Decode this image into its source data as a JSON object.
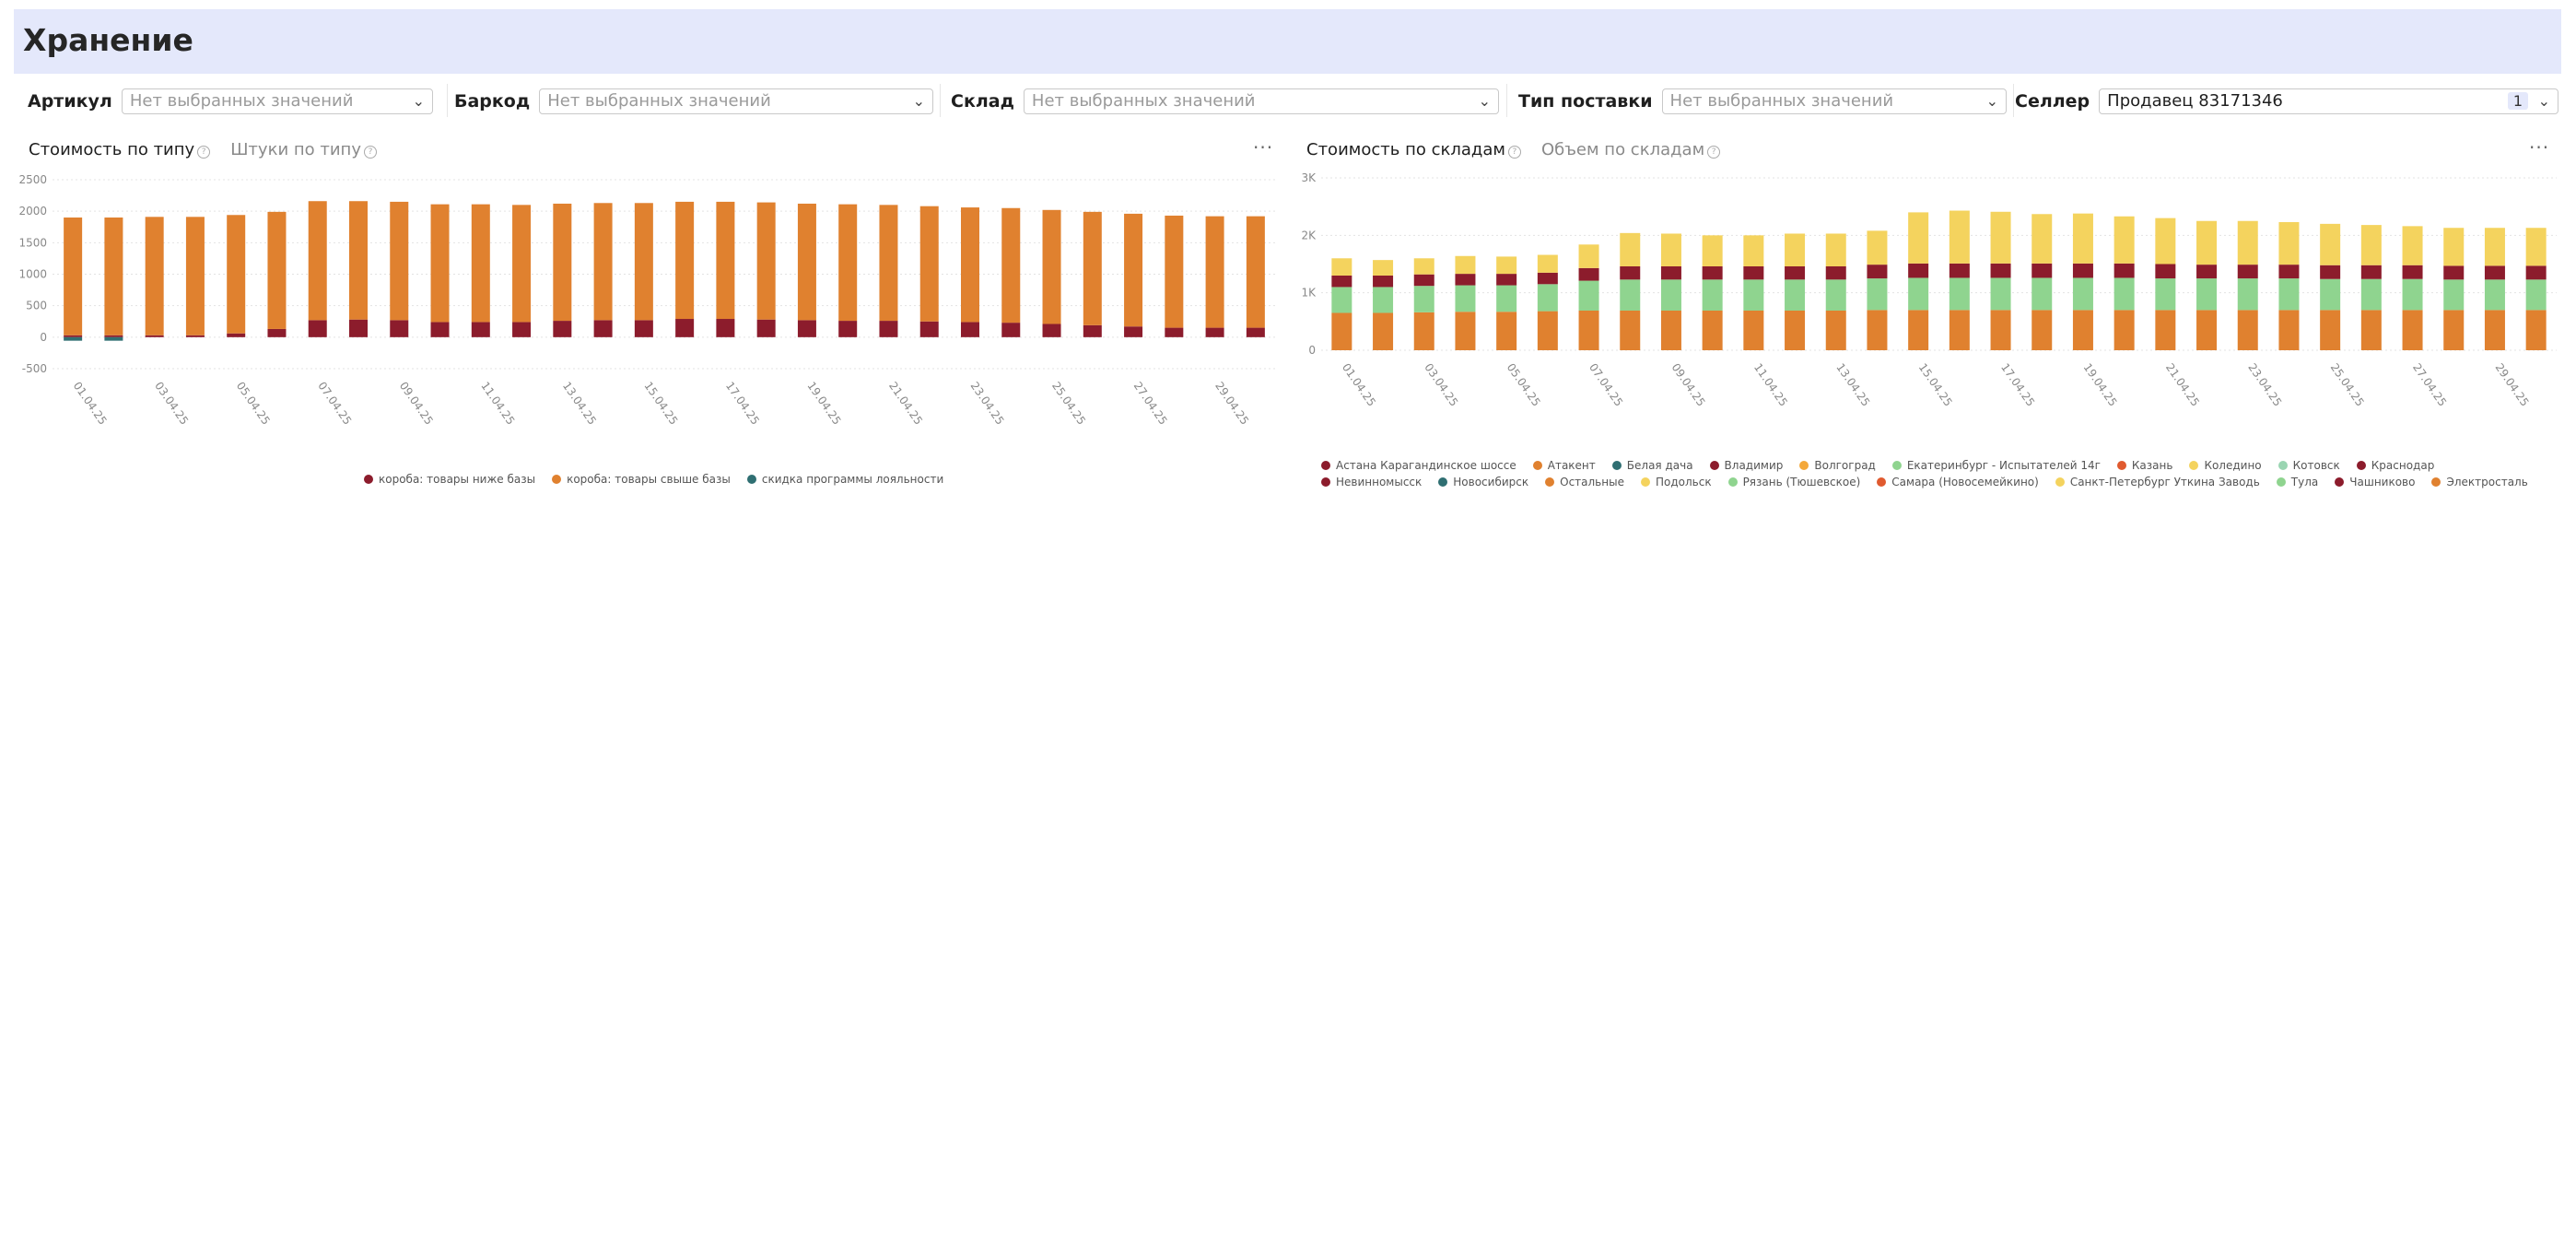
{
  "page": {
    "title": "Хранение"
  },
  "filters": [
    {
      "label": "Артикул",
      "value": "Нет выбранных значений",
      "filled": false
    },
    {
      "label": "Баркод",
      "value": "Нет выбранных значений",
      "filled": false
    },
    {
      "label": "Склад",
      "value": "Нет выбранных значений",
      "filled": false
    },
    {
      "label": "Тип поставки",
      "value": "Нет выбранных значений",
      "filled": false
    },
    {
      "label": "Селлер",
      "value": "Продавец 83171346",
      "filled": true,
      "count": "1"
    }
  ],
  "chart1": {
    "tab_active": "Стоимость по типу",
    "tab_inactive": "Штуки по типу"
  },
  "chart2": {
    "tab_active": "Стоимость по складам",
    "tab_inactive": "Объем по складам"
  },
  "colors": {
    "accent_bg": "#e4e8fb",
    "dark_red": "#8c1c2c",
    "orange": "#e0812f",
    "teal": "#2f6f72"
  },
  "chart_data": [
    {
      "type": "bar",
      "stacked": true,
      "title": "Стоимость по типу",
      "categories": [
        "01.04.25",
        "02.04.25",
        "03.04.25",
        "04.04.25",
        "05.04.25",
        "06.04.25",
        "07.04.25",
        "08.04.25",
        "09.04.25",
        "10.04.25",
        "11.04.25",
        "12.04.25",
        "13.04.25",
        "14.04.25",
        "15.04.25",
        "16.04.25",
        "17.04.25",
        "18.04.25",
        "19.04.25",
        "20.04.25",
        "21.04.25",
        "22.04.25",
        "23.04.25",
        "24.04.25",
        "25.04.25",
        "26.04.25",
        "27.04.25",
        "28.04.25",
        "29.04.25",
        "30.04.25"
      ],
      "xticks": [
        "01.04.25",
        "03.04.25",
        "05.04.25",
        "07.04.25",
        "09.04.25",
        "11.04.25",
        "13.04.25",
        "15.04.25",
        "17.04.25",
        "19.04.25",
        "21.04.25",
        "23.04.25",
        "25.04.25",
        "27.04.25",
        "29.04.25"
      ],
      "yticks": [
        2500,
        2000,
        1500,
        1000,
        500,
        0,
        -500
      ],
      "ylim": [
        -500,
        2500
      ],
      "series": [
        {
          "name": "короба: товары ниже базы",
          "color": "#8c1c2c",
          "values": [
            30,
            30,
            30,
            30,
            60,
            130,
            270,
            280,
            270,
            240,
            240,
            240,
            260,
            270,
            270,
            290,
            290,
            280,
            270,
            260,
            260,
            250,
            240,
            230,
            210,
            190,
            170,
            150,
            150,
            150
          ]
        },
        {
          "name": "короба: товары свыше базы",
          "color": "#e0812f",
          "values": [
            1870,
            1870,
            1880,
            1880,
            1880,
            1860,
            1890,
            1880,
            1880,
            1870,
            1870,
            1860,
            1860,
            1860,
            1860,
            1860,
            1860,
            1860,
            1850,
            1850,
            1840,
            1830,
            1820,
            1820,
            1810,
            1800,
            1790,
            1780,
            1770,
            1770
          ]
        },
        {
          "name": "скидка программы лояльности",
          "color": "#2f6f72",
          "values": [
            -56,
            -56,
            0,
            0,
            0,
            0,
            0,
            0,
            0,
            0,
            0,
            0,
            0,
            0,
            0,
            0,
            0,
            0,
            0,
            0,
            0,
            0,
            0,
            0,
            0,
            0,
            0,
            0,
            0,
            0
          ]
        }
      ]
    },
    {
      "type": "bar",
      "stacked": true,
      "title": "Стоимость по складам",
      "categories": [
        "01.04.25",
        "02.04.25",
        "03.04.25",
        "04.04.25",
        "05.04.25",
        "06.04.25",
        "07.04.25",
        "08.04.25",
        "09.04.25",
        "10.04.25",
        "11.04.25",
        "12.04.25",
        "13.04.25",
        "14.04.25",
        "15.04.25",
        "16.04.25",
        "17.04.25",
        "18.04.25",
        "19.04.25",
        "20.04.25",
        "21.04.25",
        "22.04.25",
        "23.04.25",
        "24.04.25",
        "25.04.25",
        "26.04.25",
        "27.04.25",
        "28.04.25",
        "29.04.25",
        "30.04.25"
      ],
      "xticks": [
        "01.04.25",
        "03.04.25",
        "05.04.25",
        "07.04.25",
        "09.04.25",
        "11.04.25",
        "13.04.25",
        "15.04.25",
        "17.04.25",
        "19.04.25",
        "21.04.25",
        "23.04.25",
        "25.04.25",
        "27.04.25",
        "29.04.25"
      ],
      "yticks": [
        "3K",
        "2K",
        "1K",
        "0"
      ],
      "ylim": [
        0,
        3000
      ],
      "series": [
        {
          "name": "Электросталь",
          "color": "#e0812f",
          "values": [
            650,
            650,
            660,
            670,
            670,
            680,
            690,
            690,
            690,
            690,
            690,
            690,
            690,
            700,
            700,
            700,
            700,
            700,
            700,
            700,
            700,
            700,
            700,
            700,
            700,
            700,
            700,
            700,
            700,
            700
          ]
        },
        {
          "name": "Тула",
          "color": "#8fd48f",
          "values": [
            450,
            450,
            460,
            460,
            460,
            470,
            520,
            540,
            540,
            540,
            540,
            540,
            540,
            550,
            560,
            560,
            560,
            560,
            560,
            560,
            550,
            550,
            550,
            550,
            540,
            540,
            540,
            530,
            530,
            530
          ]
        },
        {
          "name": "Чашниково",
          "color": "#8c1c2c",
          "values": [
            200,
            200,
            200,
            200,
            200,
            200,
            220,
            230,
            230,
            230,
            230,
            230,
            230,
            240,
            250,
            250,
            250,
            250,
            250,
            250,
            250,
            240,
            240,
            240,
            240,
            240,
            240,
            240,
            240,
            240
          ]
        },
        {
          "name": "Коледино",
          "color": "#f4d35e",
          "values": [
            300,
            270,
            280,
            310,
            300,
            310,
            410,
            580,
            570,
            540,
            540,
            570,
            570,
            590,
            890,
            920,
            900,
            860,
            870,
            820,
            800,
            760,
            760,
            740,
            720,
            700,
            680,
            660,
            660,
            660
          ]
        }
      ],
      "legend": [
        "Астана Карагандинское шоссе",
        "Атакент",
        "Белая дача",
        "Владимир",
        "Волгоград",
        "Екатеринбург - Испытателей 14г",
        "Казань",
        "Коледино",
        "Котовск",
        "Краснодар",
        "Невинномысск",
        "Новосибирск",
        "Остальные",
        "Подольск",
        "Рязань (Тюшевское)",
        "Самара (Новосемейкино)",
        "Санкт-Петербург Уткина Заводь",
        "Тула",
        "Чашниково",
        "Электросталь"
      ],
      "legend_colors": [
        "#8c1c2c",
        "#e0812f",
        "#2f6f72",
        "#8c1c2c",
        "#f4a83a",
        "#8fd48f",
        "#e05a2f",
        "#f4d35e",
        "#9ad5b2",
        "#8c1c2c",
        "#8c1c2c",
        "#2f6f72",
        "#e0812f",
        "#f4d35e",
        "#8fd48f",
        "#e05a2f",
        "#f4d35e",
        "#8fd48f",
        "#8c1c2c",
        "#e0812f"
      ]
    }
  ]
}
